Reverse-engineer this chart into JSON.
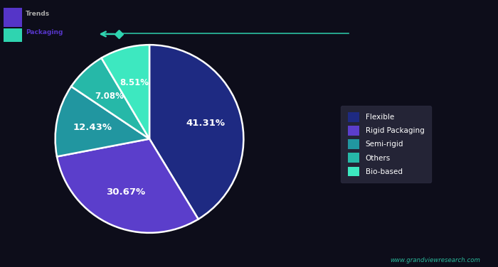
{
  "slices": [
    41.31,
    30.67,
    12.43,
    7.08,
    8.51
  ],
  "slice_labels": [
    "41.31%",
    "30.67%",
    "12.43%",
    "7.08%",
    "8.51%"
  ],
  "slice_colors": [
    "#1e2a82",
    "#5b3ecb",
    "#2196a0",
    "#26b8a8",
    "#3de8c0"
  ],
  "legend_labels": [
    "Flexible",
    "Rigid Packaging",
    "Semi-rigid",
    "Others",
    "Bio-based"
  ],
  "legend_colors": [
    "#1e2a82",
    "#5b3ecb",
    "#2196a0",
    "#26b8a8",
    "#3de8c0"
  ],
  "background_color": "#0d0d1a",
  "text_color": "#ffffff",
  "watermark": "www.grandviewresearch.com",
  "watermark_color": "#2fd4b0",
  "line_color": "#2fd4b0",
  "startangle": 90
}
